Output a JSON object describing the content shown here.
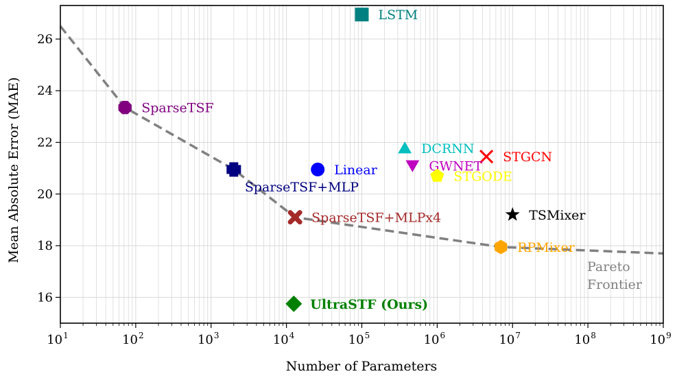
{
  "chart_data": {
    "type": "scatter",
    "title": "",
    "xlabel": "Number of Parameters",
    "ylabel": "Mean Absolute Error (MAE)",
    "xscale": "log",
    "xlim": [
      10,
      1000000000
    ],
    "ylim": [
      15.0,
      27.3
    ],
    "grid": true,
    "x_ticks": [
      {
        "value": 10,
        "base": "10",
        "exp": "1"
      },
      {
        "value": 100,
        "base": "10",
        "exp": "2"
      },
      {
        "value": 1000,
        "base": "10",
        "exp": "3"
      },
      {
        "value": 10000,
        "base": "10",
        "exp": "4"
      },
      {
        "value": 100000,
        "base": "10",
        "exp": "5"
      },
      {
        "value": 1000000,
        "base": "10",
        "exp": "6"
      },
      {
        "value": 10000000,
        "base": "10",
        "exp": "7"
      },
      {
        "value": 100000000,
        "base": "10",
        "exp": "8"
      },
      {
        "value": 1000000000,
        "base": "10",
        "exp": "9"
      }
    ],
    "y_ticks": [
      {
        "value": 16,
        "label": "16"
      },
      {
        "value": 18,
        "label": "18"
      },
      {
        "value": 20,
        "label": "20"
      },
      {
        "value": 22,
        "label": "22"
      },
      {
        "value": 24,
        "label": "24"
      },
      {
        "value": 26,
        "label": "26"
      }
    ],
    "points": [
      {
        "name": "LSTM",
        "x": 100000,
        "y": 26.95,
        "marker": "square",
        "color": "#008080",
        "label_pos": "right",
        "bold": false
      },
      {
        "name": "SparseTSF",
        "x": 72,
        "y": 23.35,
        "marker": "octagon",
        "color": "#800080",
        "label_pos": "right",
        "bold": false
      },
      {
        "name": "DCRNN",
        "x": 372000,
        "y": 21.78,
        "marker": "triangle-up",
        "color": "#00bfbf",
        "label_pos": "right",
        "bold": false
      },
      {
        "name": "STGCN",
        "x": 4500000,
        "y": 21.45,
        "marker": "x",
        "color": "#ff0000",
        "label_pos": "right",
        "bold": false
      },
      {
        "name": "Linear",
        "x": 26000,
        "y": 20.95,
        "marker": "circle",
        "color": "#0000ff",
        "label_pos": "right",
        "bold": false
      },
      {
        "name": "SparseTSF+MLP",
        "x": 2000,
        "y": 20.95,
        "marker": "plus",
        "color": "#000080",
        "label_pos": "below-right",
        "bold": false
      },
      {
        "name": "GWNET",
        "x": 470000,
        "y": 21.1,
        "marker": "triangle-down",
        "color": "#bf00bf",
        "label_pos": "right",
        "bold": false
      },
      {
        "name": "STGODE",
        "x": 1000000,
        "y": 20.7,
        "marker": "pentagon",
        "color": "#ffff00",
        "label_pos": "right",
        "bold": false
      },
      {
        "name": "SparseTSF+MLPx4",
        "x": 13000,
        "y": 19.1,
        "marker": "x-thick",
        "color": "#a52a2a",
        "label_pos": "right",
        "bold": false
      },
      {
        "name": "TSMixer",
        "x": 10000000,
        "y": 19.2,
        "marker": "star",
        "color": "#000000",
        "label_pos": "right",
        "bold": false
      },
      {
        "name": "RPMixer",
        "x": 7000000,
        "y": 17.95,
        "marker": "hexagon",
        "color": "#ffa500",
        "label_pos": "right",
        "bold": false
      },
      {
        "name": "UltraSTF (Ours)",
        "x": 12500,
        "y": 15.75,
        "marker": "diamond",
        "color": "#008000",
        "label_pos": "right",
        "bold": true
      }
    ],
    "pareto_frontier": {
      "label_lines": [
        "Pareto",
        "Frontier"
      ],
      "color": "#808080",
      "x": [
        10,
        72,
        2000,
        13000,
        7000000,
        1000000000
      ],
      "y": [
        26.5,
        23.35,
        20.95,
        19.1,
        17.95,
        17.7
      ]
    }
  }
}
